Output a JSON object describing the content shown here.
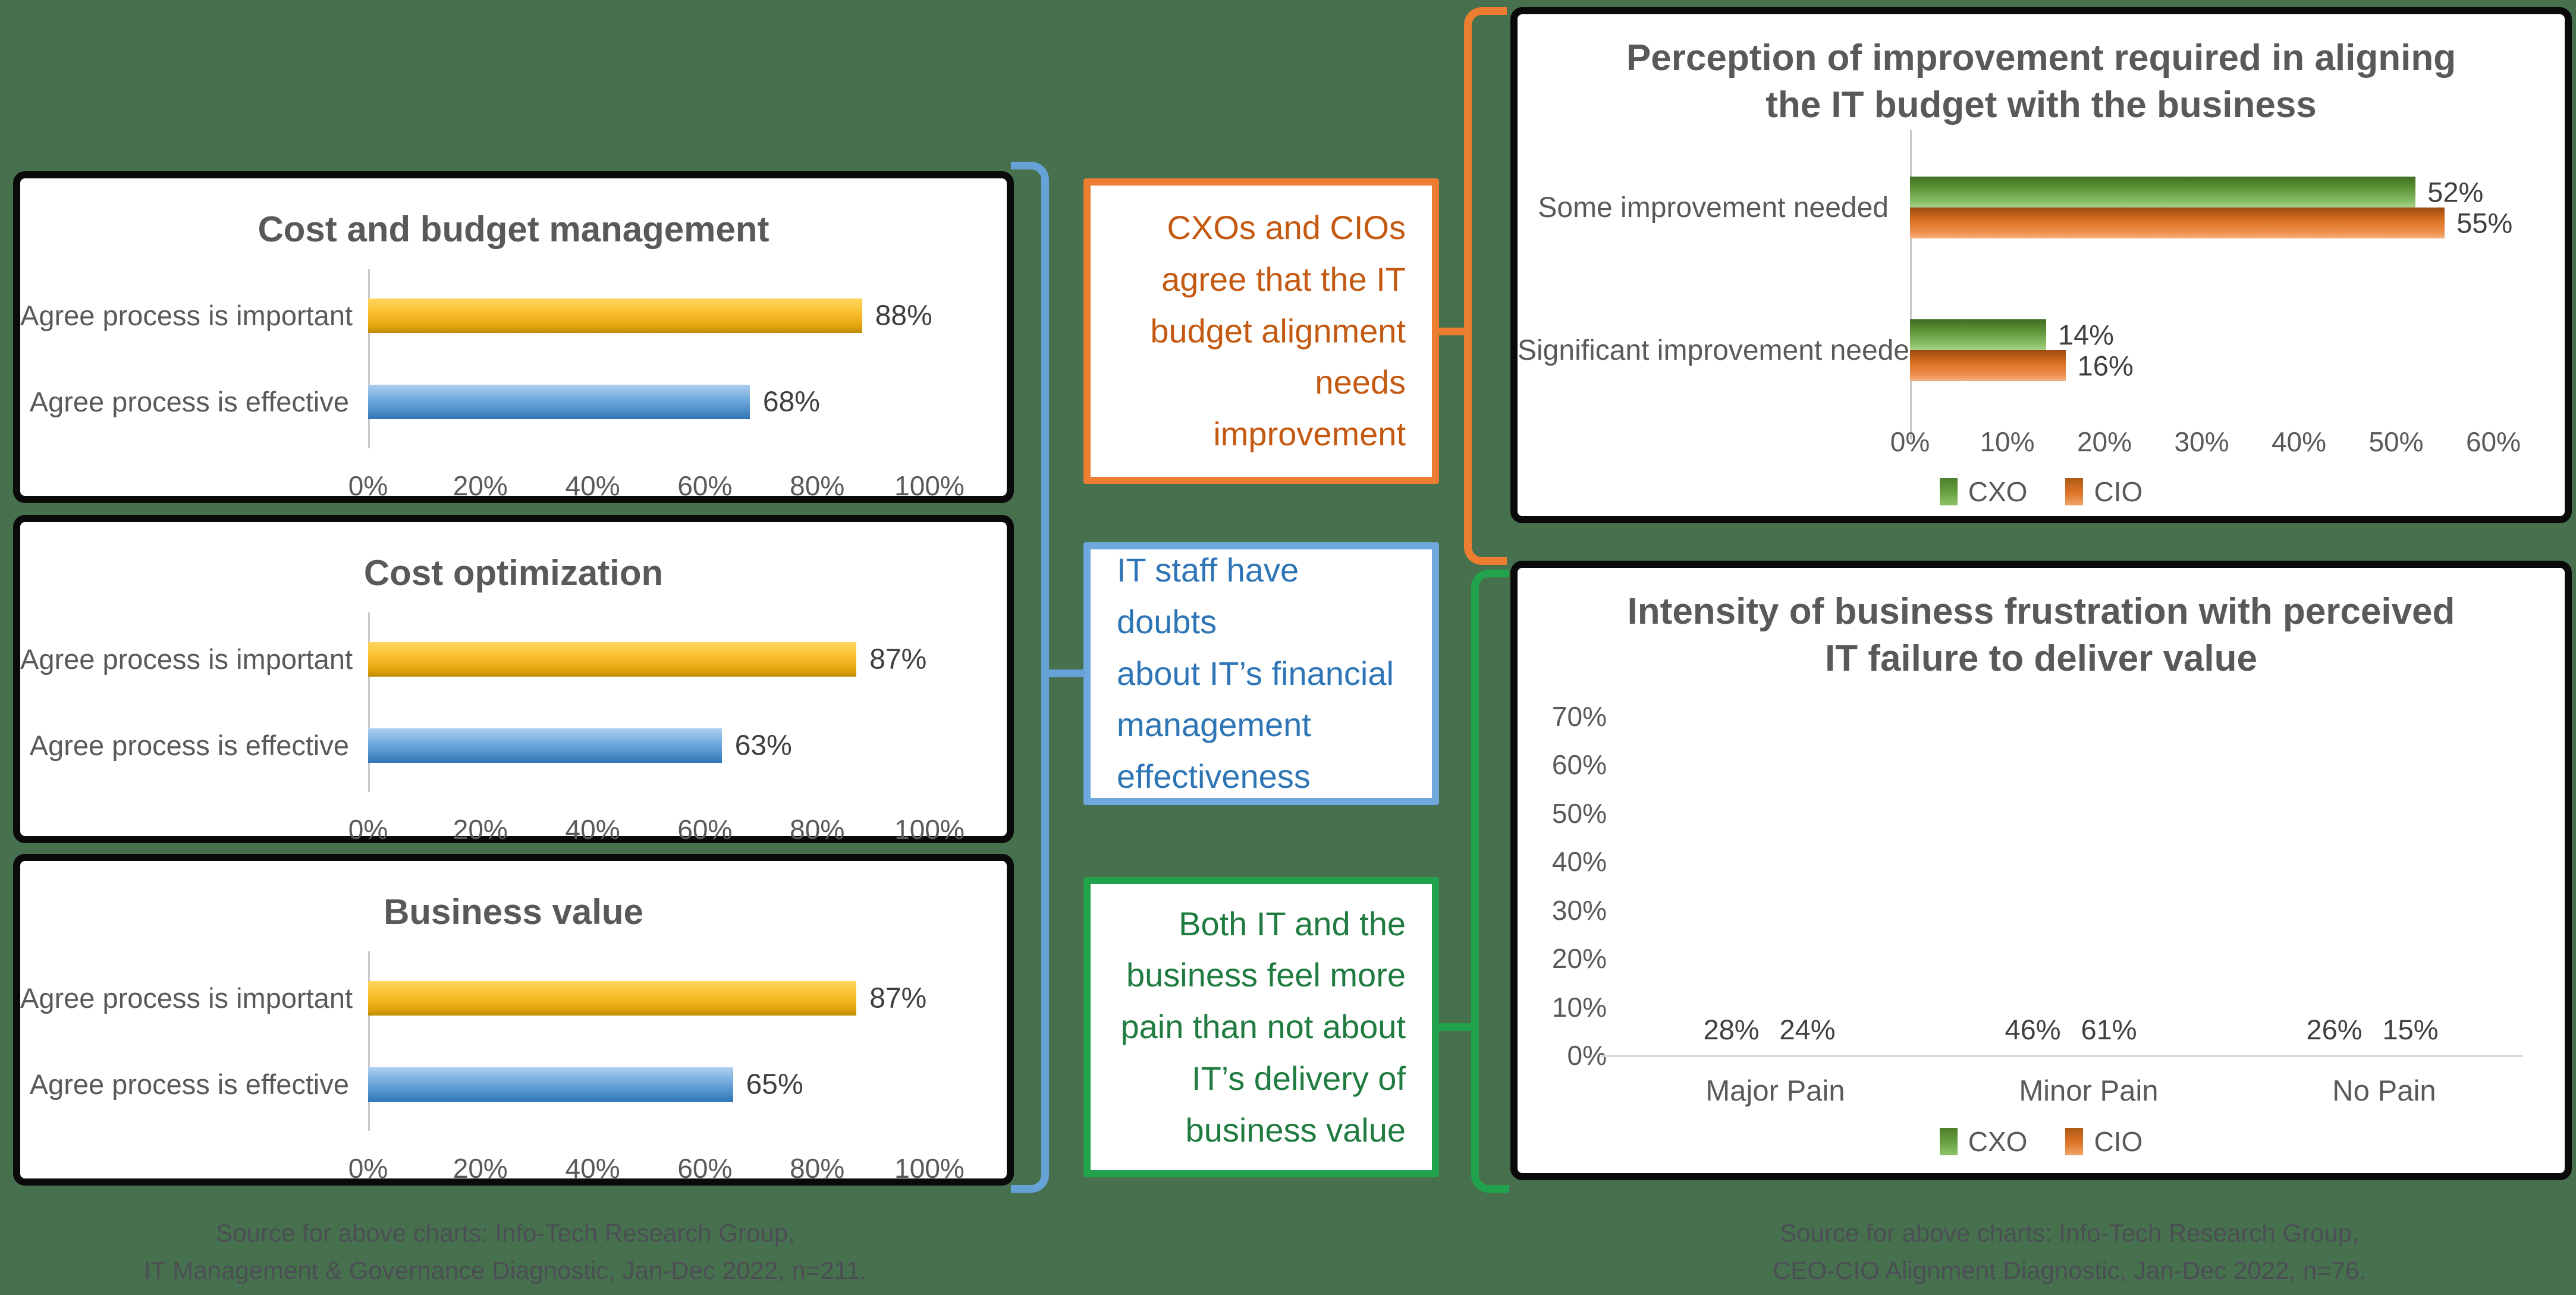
{
  "background_color": "#47714E",
  "colors": {
    "gold_bar": "#F2B21E",
    "blue_bar": "#5B9BD5",
    "green_bar": "#70AD47",
    "orange_bar": "#ED7D31",
    "callout_orange_text": "#C45911",
    "callout_orange_border": "#ED7D31",
    "callout_blue_text": "#2E75B6",
    "callout_blue_border": "#6FA8DC",
    "callout_green_text": "#1F7B40",
    "callout_green_border": "#21A24C",
    "title_text": "#595959",
    "axis_text": "#595959",
    "value_text": "#3F3F3F",
    "source_text": "#4B4E54"
  },
  "chart_data": [
    {
      "id": "cost_and_budget_management",
      "type": "bar",
      "orientation": "horizontal",
      "title": "Cost and budget management",
      "categories": [
        "Agree process is important",
        "Agree process is effective"
      ],
      "values": [
        88,
        68
      ],
      "value_labels": [
        "88%",
        "68%"
      ],
      "bar_colors": [
        "gold",
        "blue"
      ],
      "xlim": [
        0,
        100
      ],
      "x_ticks": [
        "0%",
        "20%",
        "40%",
        "60%",
        "80%",
        "100%"
      ],
      "grid": false,
      "legend_position": "none"
    },
    {
      "id": "cost_optimization",
      "type": "bar",
      "orientation": "horizontal",
      "title": "Cost optimization",
      "categories": [
        "Agree process is important",
        "Agree process is effective"
      ],
      "values": [
        87,
        63
      ],
      "value_labels": [
        "87%",
        "63%"
      ],
      "bar_colors": [
        "gold",
        "blue"
      ],
      "xlim": [
        0,
        100
      ],
      "x_ticks": [
        "0%",
        "20%",
        "40%",
        "60%",
        "80%",
        "100%"
      ],
      "grid": false,
      "legend_position": "none"
    },
    {
      "id": "business_value",
      "type": "bar",
      "orientation": "horizontal",
      "title": "Business value",
      "categories": [
        "Agree process is important",
        "Agree process is effective"
      ],
      "values": [
        87,
        65
      ],
      "value_labels": [
        "87%",
        "65%"
      ],
      "bar_colors": [
        "gold",
        "blue"
      ],
      "xlim": [
        0,
        100
      ],
      "x_ticks": [
        "0%",
        "20%",
        "40%",
        "60%",
        "80%",
        "100%"
      ],
      "grid": false,
      "legend_position": "none"
    },
    {
      "id": "perception_of_improvement",
      "type": "bar",
      "orientation": "horizontal",
      "grouped": true,
      "title": "Perception of improvement required in aligning the IT budget with the business",
      "title_lines": [
        "Perception of improvement required in aligning",
        "the IT budget with the business"
      ],
      "categories": [
        "Some improvement needed",
        "Significant improvement needed"
      ],
      "series": [
        {
          "name": "CXO",
          "color": "green",
          "values": [
            52,
            14
          ],
          "value_labels": [
            "52%",
            "14%"
          ]
        },
        {
          "name": "CIO",
          "color": "orange",
          "values": [
            55,
            16
          ],
          "value_labels": [
            "55%",
            "16%"
          ]
        }
      ],
      "xlim": [
        0,
        60
      ],
      "x_ticks": [
        "0%",
        "10%",
        "20%",
        "30%",
        "40%",
        "50%",
        "60%"
      ],
      "grid": false,
      "legend": [
        "CXO",
        "CIO"
      ],
      "legend_position": "bottom"
    },
    {
      "id": "intensity_of_business_frustration",
      "type": "bar",
      "orientation": "vertical",
      "grouped": true,
      "title": "Intensity of business frustration with perceived IT failure to deliver value",
      "title_lines": [
        "Intensity of business frustration with perceived",
        "IT failure to deliver value"
      ],
      "categories": [
        "Major Pain",
        "Minor Pain",
        "No Pain"
      ],
      "series": [
        {
          "name": "CXO",
          "color": "green",
          "values": [
            28,
            46,
            26
          ],
          "value_labels": [
            "28%",
            "46%",
            "26%"
          ]
        },
        {
          "name": "CIO",
          "color": "orange",
          "values": [
            24,
            61,
            15
          ],
          "value_labels": [
            "24%",
            "61%",
            "15%"
          ]
        }
      ],
      "ylim": [
        0,
        70
      ],
      "y_ticks": [
        "0%",
        "10%",
        "20%",
        "30%",
        "40%",
        "50%",
        "60%",
        "70%"
      ],
      "grid": false,
      "legend": [
        "CXO",
        "CIO"
      ],
      "legend_position": "bottom"
    }
  ],
  "callouts": [
    {
      "id": "orange",
      "align": "right",
      "lines": [
        "CXOs and CIOs",
        "agree that the IT",
        "budget alignment",
        "needs improvement"
      ]
    },
    {
      "id": "blue",
      "align": "left",
      "lines": [
        "IT staff have doubts",
        "about IT’s financial",
        "management",
        "effectiveness"
      ]
    },
    {
      "id": "green",
      "align": "right",
      "lines": [
        "Both IT and the",
        "business feel more",
        "pain than not about",
        "IT’s delivery of",
        "business value"
      ]
    }
  ],
  "sources": {
    "left": [
      "Source for above charts: Info-Tech Research Group,",
      "IT Management & Governance Diagnostic, Jan-Dec 2022, n=211."
    ],
    "right": [
      "Source for above charts: Info-Tech Research Group,",
      "CEO-CIO Alignment Diagnostic, Jan-Dec 2022, n=76."
    ]
  }
}
